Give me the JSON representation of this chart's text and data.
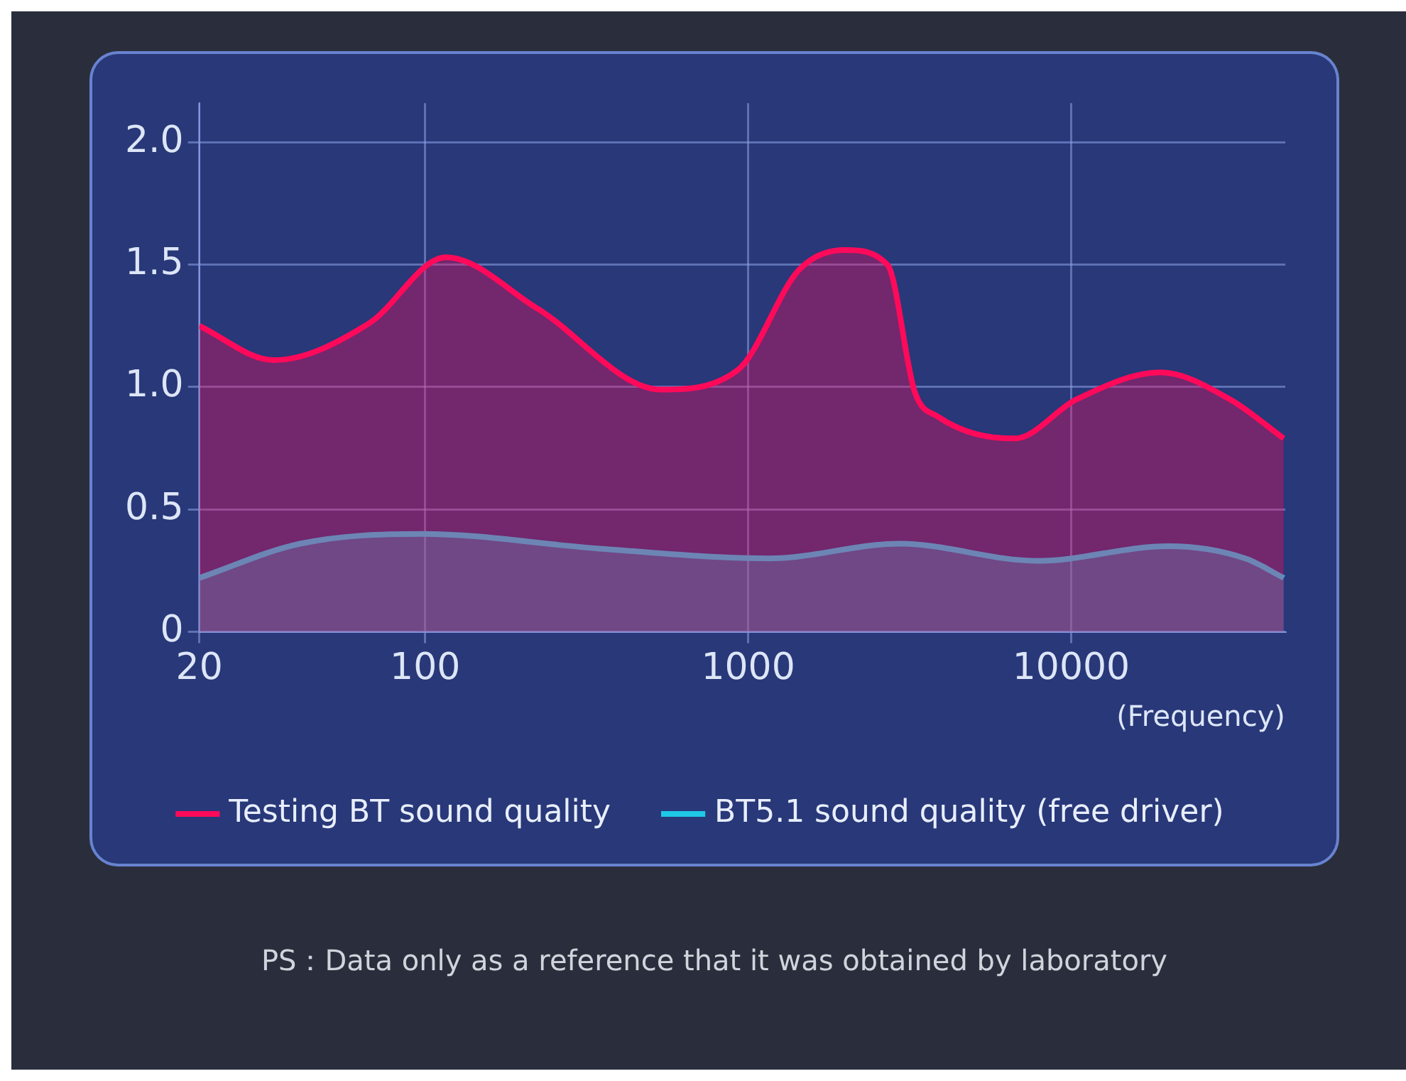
{
  "chart_data": {
    "type": "area",
    "xlabel": "(Frequency)",
    "log": "x",
    "xlim": [
      20,
      46000
    ],
    "xticks": [
      20,
      100,
      1000,
      10000
    ],
    "ylim": [
      0,
      2.16
    ],
    "yticks": [
      {
        "value": 0,
        "label": "0"
      },
      {
        "value": 0.5,
        "label": "0.5"
      },
      {
        "value": 1,
        "label": "1.0"
      },
      {
        "value": 1.5,
        "label": "1.5"
      },
      {
        "value": 2,
        "label": "2.0"
      }
    ],
    "grid": true,
    "legend": "bottom",
    "annotations": [
      "PS：Data only as a reference that it was obtained by laboratory"
    ],
    "series": [
      {
        "name": "Testing BT sound quality",
        "color": "#ff0a5a",
        "x": [
          20,
          34,
          67,
          116,
          223,
          538,
          929,
          1440,
          2000,
          2700,
          3280,
          3860,
          6680,
          10400,
          18900,
          31000,
          45500
        ],
        "values": [
          1.25,
          1.11,
          1.26,
          1.53,
          1.32,
          0.99,
          1.07,
          1.48,
          1.56,
          1.5,
          0.98,
          0.88,
          0.79,
          0.95,
          1.06,
          0.95,
          0.79
        ]
      },
      {
        "name": "BT5.1 sound quality (free driver)",
        "color": "#1ec8e6",
        "x": [
          20,
          41,
          98,
          346,
          1160,
          2940,
          7870,
          20000,
          34600,
          45500
        ],
        "values": [
          0.22,
          0.36,
          0.4,
          0.34,
          0.3,
          0.36,
          0.29,
          0.35,
          0.3,
          0.22
        ]
      }
    ]
  }
}
